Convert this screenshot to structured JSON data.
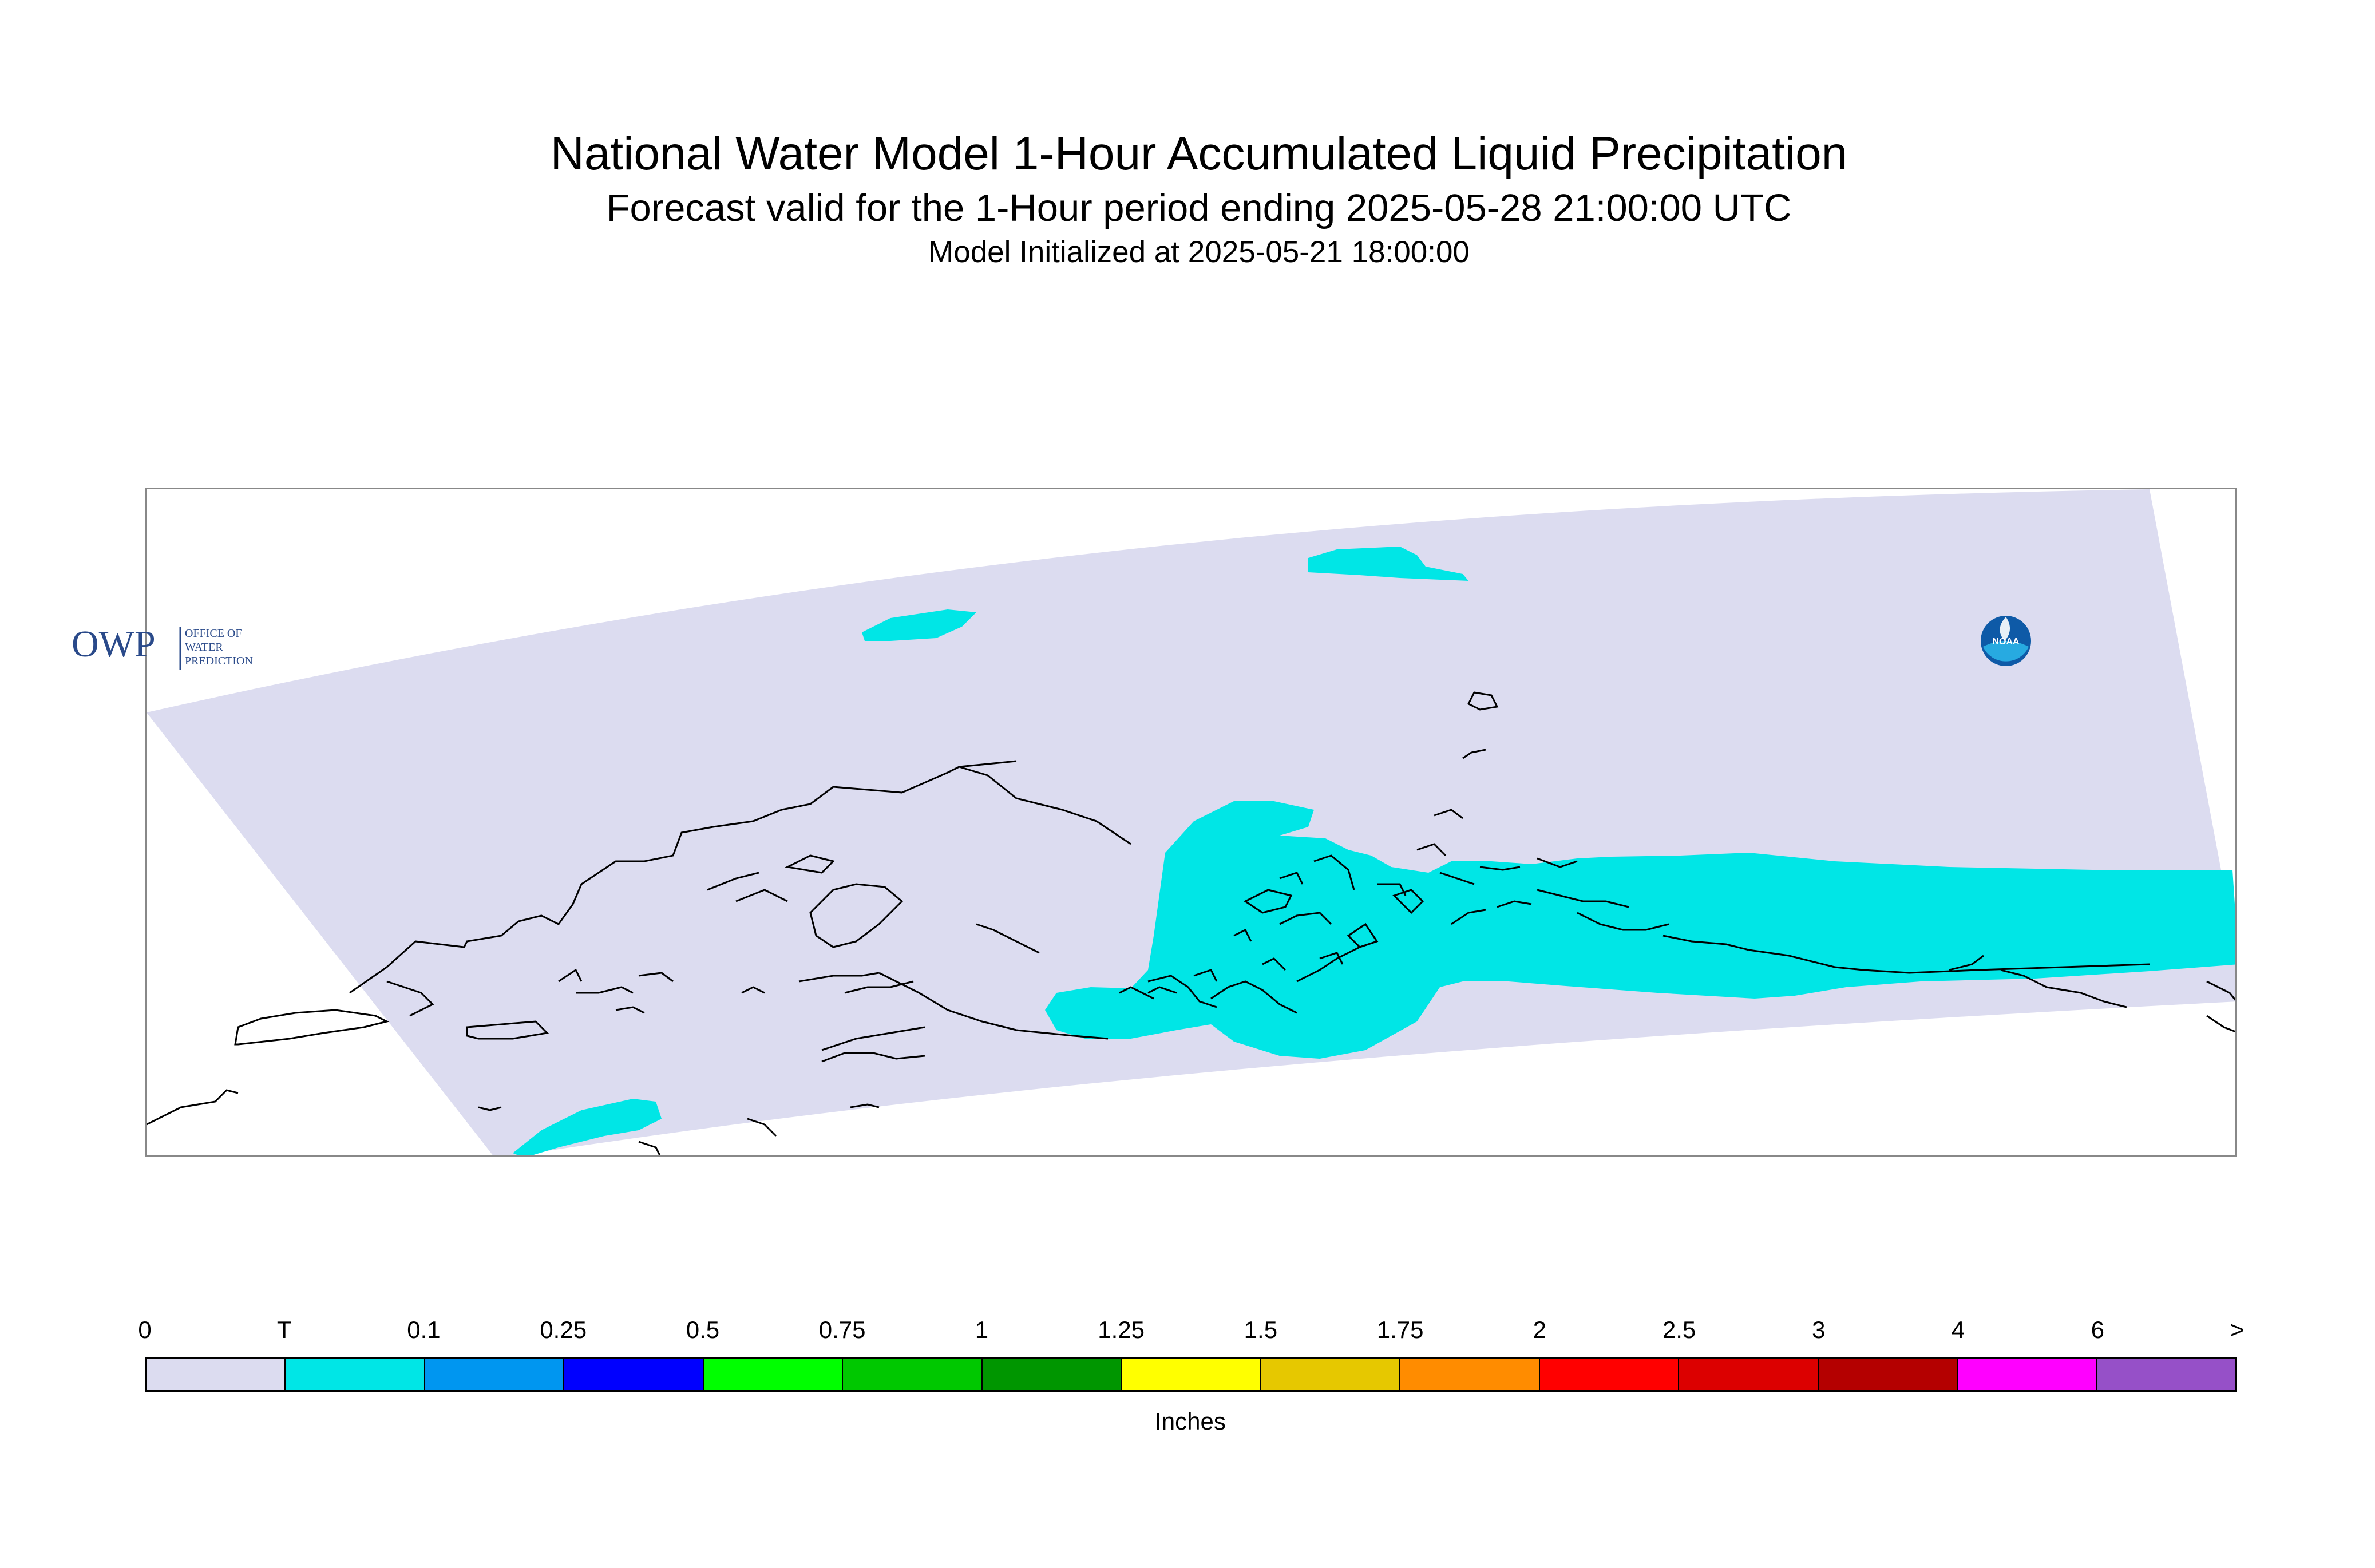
{
  "title": "National Water Model 1-Hour Accumulated Liquid Precipitation",
  "subtitle": "Forecast valid for the 1-Hour period ending 2025-05-28 21:00:00 UTC",
  "init_line": "Model Initialized at 2025-05-21 18:00:00",
  "logo_owp": {
    "mark": "OWP",
    "text": [
      "OFFICE OF",
      "WATER",
      "PREDICTION"
    ]
  },
  "logo_noaa": {
    "text": "NOAA"
  },
  "colors": {
    "domain_fill": "#dcdcf0",
    "trace_fill": "#00e6e6",
    "coastline": "#000000"
  },
  "legend": {
    "units": "Inches",
    "ticks": [
      "0",
      "T",
      "0.1",
      "0.25",
      "0.5",
      "0.75",
      "1",
      "1.25",
      "1.5",
      "1.75",
      "2",
      "2.5",
      "3",
      "4",
      "6",
      ">"
    ],
    "bins": [
      "#dcdcf0",
      "#00e6e6",
      "#0096f0",
      "#0000ff",
      "#00ff00",
      "#00c800",
      "#009600",
      "#ffff00",
      "#e6c800",
      "#ff8c00",
      "#ff0000",
      "#dc0000",
      "#b40000",
      "#ff00ff",
      "#9650c8"
    ]
  }
}
